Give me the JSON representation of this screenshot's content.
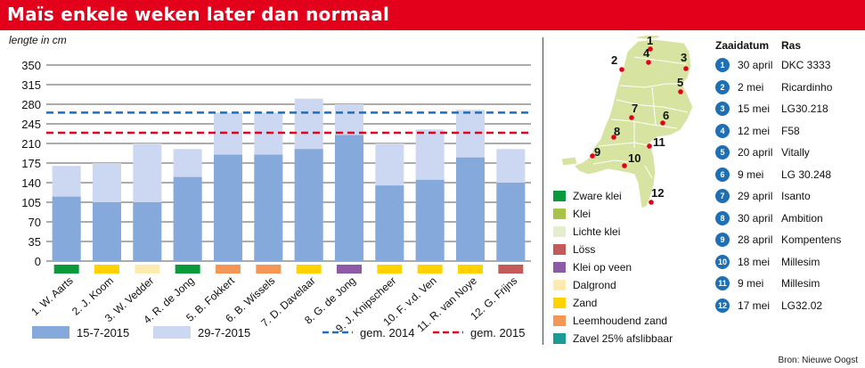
{
  "header": {
    "title": "Maïs enkele weken later dan normaal"
  },
  "source": "Bron: Nieuwe Oogst",
  "chart_data": {
    "type": "bar",
    "ylabel": "lengte in cm",
    "ylim": [
      0,
      350
    ],
    "yticks": [
      0,
      35,
      70,
      105,
      140,
      175,
      210,
      245,
      280,
      315,
      350
    ],
    "grid": true,
    "categories": [
      "1. W. Aarts",
      "2. J. Koom",
      "3. W. Vedder",
      "4. R. de Jong",
      "5. B. Fokkert",
      "6. B. Wissels",
      "7. D. Davelaar",
      "8. G. de Jong",
      "9. J. Knipscheer",
      "10. F. v.d. Ven",
      "11. R. van Noye",
      "12. G. Frijns"
    ],
    "soil_color": [
      "#0a9a3c",
      "#ffd200",
      "#fdebb0",
      "#0a9a3c",
      "#f39656",
      "#f39656",
      "#ffd200",
      "#8e5aa8",
      "#ffd200",
      "#ffd200",
      "#ffd200",
      "#c45a5a"
    ],
    "series": [
      {
        "name": "15-7-2015",
        "color": "#86a9dc",
        "values": [
          115,
          105,
          105,
          150,
          190,
          190,
          200,
          225,
          135,
          145,
          185,
          140
        ]
      },
      {
        "name": "29-7-2015",
        "color": "#ccd8f2",
        "values": [
          170,
          175,
          210,
          200,
          265,
          265,
          290,
          280,
          210,
          235,
          270,
          200
        ]
      }
    ],
    "reference_lines": [
      {
        "name": "gem. 2014",
        "value": 265,
        "color": "#1b6fbf"
      },
      {
        "name": "gem. 2015",
        "value": 229,
        "color": "#e3001b"
      }
    ]
  },
  "soil_legend": [
    {
      "label": "Zware klei",
      "color": "#0a9a3c"
    },
    {
      "label": "Klei",
      "color": "#a7c34a"
    },
    {
      "label": "Lichte klei",
      "color": "#e4edcd"
    },
    {
      "label": "Löss",
      "color": "#c45a5a"
    },
    {
      "label": "Klei op veen",
      "color": "#8e5aa8"
    },
    {
      "label": "Dalgrond",
      "color": "#fdebb0"
    },
    {
      "label": "Zand",
      "color": "#ffd200"
    },
    {
      "label": "Leemhoudend zand",
      "color": "#f39656"
    },
    {
      "label": "Zavel 25% afslibbaar",
      "color": "#1c9b95"
    }
  ],
  "table": {
    "col_date": "Zaaidatum",
    "col_ras": "Ras",
    "rows": [
      {
        "num": "1",
        "date": "30 april",
        "ras": "DKC 3333"
      },
      {
        "num": "2",
        "date": "2 mei",
        "ras": "Ricardinho"
      },
      {
        "num": "3",
        "date": "15 mei",
        "ras": "LG30.218"
      },
      {
        "num": "4",
        "date": "12 mei",
        "ras": "F58"
      },
      {
        "num": "5",
        "date": "20 april",
        "ras": "Vitally"
      },
      {
        "num": "6",
        "date": "9 mei",
        "ras": "LG 30.248"
      },
      {
        "num": "7",
        "date": "29 april",
        "ras": "Isanto"
      },
      {
        "num": "8",
        "date": "30 april",
        "ras": "Ambition"
      },
      {
        "num": "9",
        "date": "28 april",
        "ras": "Kompentens"
      },
      {
        "num": "10",
        "date": "18 mei",
        "ras": "Millesim"
      },
      {
        "num": "11",
        "date": "9 mei",
        "ras": "Millesim"
      },
      {
        "num": "12",
        "date": "17 mei",
        "ras": "LG32.02"
      }
    ]
  },
  "map": {
    "fill": "#d7e3a0",
    "marker_color": "#e3001b",
    "labels": [
      "1",
      "2",
      "3",
      "4",
      "5",
      "6",
      "7",
      "8",
      "9",
      "10",
      "11",
      "12"
    ]
  }
}
